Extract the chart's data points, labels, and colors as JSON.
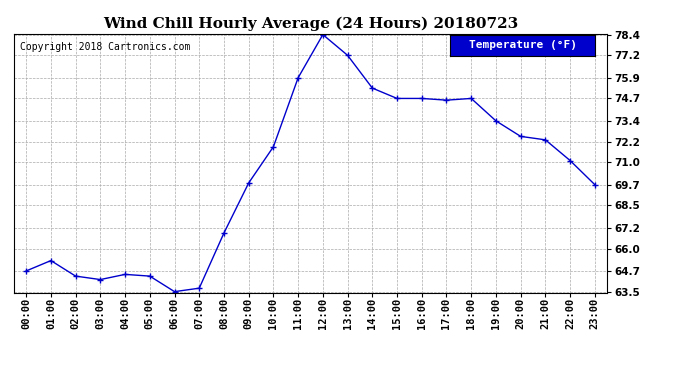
{
  "title": "Wind Chill Hourly Average (24 Hours) 20180723",
  "copyright_text": "Copyright 2018 Cartronics.com",
  "legend_label": "Temperature (°F)",
  "x_labels": [
    "00:00",
    "01:00",
    "02:00",
    "03:00",
    "04:00",
    "05:00",
    "06:00",
    "07:00",
    "08:00",
    "09:00",
    "10:00",
    "11:00",
    "12:00",
    "13:00",
    "14:00",
    "15:00",
    "16:00",
    "17:00",
    "18:00",
    "19:00",
    "20:00",
    "21:00",
    "22:00",
    "23:00"
  ],
  "y_values": [
    64.7,
    65.3,
    64.4,
    64.2,
    64.5,
    64.4,
    63.5,
    63.7,
    66.9,
    69.8,
    71.9,
    75.9,
    78.4,
    77.2,
    75.3,
    74.7,
    74.7,
    74.6,
    74.7,
    73.4,
    72.5,
    72.3,
    71.1,
    69.7
  ],
  "ylim_min": 63.5,
  "ylim_max": 78.4,
  "yticks": [
    63.5,
    64.7,
    66.0,
    67.2,
    68.5,
    69.7,
    71.0,
    72.2,
    73.4,
    74.7,
    75.9,
    77.2,
    78.4
  ],
  "ytick_labels": [
    "63.5",
    "64.7",
    "66.0",
    "67.2",
    "68.5",
    "69.7",
    "71.0",
    "72.2",
    "73.4",
    "74.7",
    "75.9",
    "77.2",
    "78.4"
  ],
  "line_color": "#0000CC",
  "bg_color": "#ffffff",
  "plot_bg_color": "#ffffff",
  "grid_color": "#aaaaaa",
  "title_fontsize": 11,
  "copyright_fontsize": 7,
  "tick_fontsize": 7.5,
  "legend_bg_color": "#0000CC",
  "legend_text_color": "#ffffff",
  "legend_fontsize": 8
}
